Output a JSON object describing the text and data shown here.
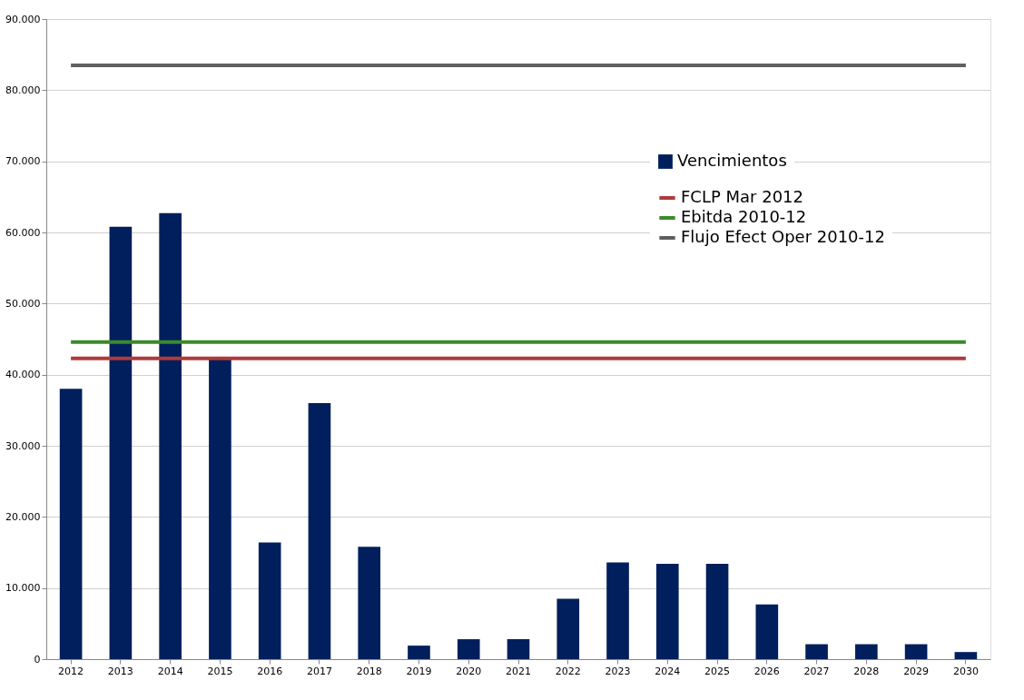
{
  "chart_data": {
    "type": "bar",
    "categories": [
      "2012",
      "2013",
      "2014",
      "2015",
      "2016",
      "2017",
      "2018",
      "2019",
      "2020",
      "2021",
      "2022",
      "2023",
      "2024",
      "2025",
      "2026",
      "2027",
      "2028",
      "2029",
      "2030"
    ],
    "series": [
      {
        "name": "Vencimientos",
        "color": "#001f5c",
        "values": [
          38000,
          60800,
          62700,
          42300,
          16400,
          36000,
          15800,
          1900,
          2800,
          2800,
          8500,
          13600,
          13400,
          13400,
          7700,
          2100,
          2100,
          2100,
          1000
        ]
      },
      {
        "name": "FCLP Mar 2012",
        "type": "line",
        "color": "#b03a3a",
        "values": [
          42300,
          42300,
          42300,
          42300,
          42300,
          42300,
          42300,
          42300,
          42300,
          42300,
          42300,
          42300,
          42300,
          42300,
          42300,
          42300,
          42300,
          42300,
          42300
        ]
      },
      {
        "name": "Ebitda 2010-12",
        "type": "line",
        "color": "#3a8a2a",
        "values": [
          44600,
          44600,
          44600,
          44600,
          44600,
          44600,
          44600,
          44600,
          44600,
          44600,
          44600,
          44600,
          44600,
          44600,
          44600,
          44600,
          44600,
          44600,
          44600
        ]
      },
      {
        "name": "Flujo Efect Oper 2010-12",
        "type": "line",
        "color": "#5f5f5f",
        "values": [
          83500,
          83500,
          83500,
          83500,
          83500,
          83500,
          83500,
          83500,
          83500,
          83500,
          83500,
          83500,
          83500,
          83500,
          83500,
          83500,
          83500,
          83500,
          83500
        ]
      }
    ],
    "ylim": [
      0,
      90000
    ],
    "yticks": [
      {
        "value": 0,
        "label": "0"
      },
      {
        "value": 10000,
        "label": "10.000"
      },
      {
        "value": 20000,
        "label": "20.000"
      },
      {
        "value": 30000,
        "label": "30.000"
      },
      {
        "value": 40000,
        "label": "40.000"
      },
      {
        "value": 50000,
        "label": "50.000"
      },
      {
        "value": 60000,
        "label": "60.000"
      },
      {
        "value": 70000,
        "label": "70.000"
      },
      {
        "value": 80000,
        "label": "80.000"
      },
      {
        "value": 90000,
        "label": "90.000"
      }
    ],
    "grid": "y",
    "legend": "top right",
    "marker": "none",
    "line_style": "solid"
  }
}
